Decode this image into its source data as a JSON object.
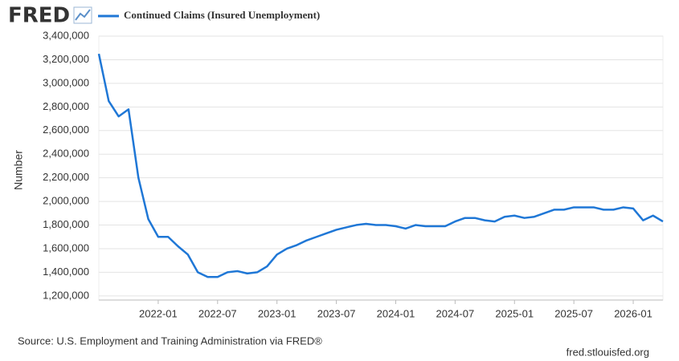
{
  "chart_data": {
    "type": "line",
    "logo": "FRED",
    "ylabel": "Number",
    "source": "Source: U.S. Employment and Training Administration via FRED®",
    "credit": "fred.stlouisfed.org",
    "grid": true,
    "xlim": [
      "2021-07",
      "2026-04"
    ],
    "xticks": [
      "2022-01",
      "2022-07",
      "2023-01",
      "2023-07",
      "2024-01",
      "2024-07",
      "2025-01",
      "2025-07",
      "2026-01"
    ],
    "ylim": [
      1165000,
      3400000
    ],
    "yticks": [
      {
        "value": 1200000,
        "label": "1,200,000"
      },
      {
        "value": 1400000,
        "label": "1,400,000"
      },
      {
        "value": 1600000,
        "label": "1,600,000"
      },
      {
        "value": 1800000,
        "label": "1,800,000"
      },
      {
        "value": 2000000,
        "label": "2,000,000"
      },
      {
        "value": 2200000,
        "label": "2,200,000"
      },
      {
        "value": 2400000,
        "label": "2,400,000"
      },
      {
        "value": 2600000,
        "label": "2,600,000"
      },
      {
        "value": 2800000,
        "label": "2,800,000"
      },
      {
        "value": 3000000,
        "label": "3,000,000"
      },
      {
        "value": 3200000,
        "label": "3,200,000"
      },
      {
        "value": 3400000,
        "label": "3,400,000"
      }
    ],
    "x": [
      "2021-07",
      "2021-08",
      "2021-09",
      "2021-10",
      "2021-11",
      "2021-12",
      "2022-01",
      "2022-02",
      "2022-03",
      "2022-04",
      "2022-05",
      "2022-06",
      "2022-07",
      "2022-08",
      "2022-09",
      "2022-10",
      "2022-11",
      "2022-12",
      "2023-01",
      "2023-02",
      "2023-03",
      "2023-04",
      "2023-05",
      "2023-06",
      "2023-07",
      "2023-08",
      "2023-09",
      "2023-10",
      "2023-11",
      "2023-12",
      "2024-01",
      "2024-02",
      "2024-03",
      "2024-04",
      "2024-05",
      "2024-06",
      "2024-07",
      "2024-08",
      "2024-09",
      "2024-10",
      "2024-11",
      "2024-12",
      "2025-01",
      "2025-02",
      "2025-03",
      "2025-04",
      "2025-05",
      "2025-06",
      "2025-07",
      "2025-08",
      "2025-09",
      "2025-10",
      "2025-11",
      "2025-12",
      "2026-01",
      "2026-02",
      "2026-03",
      "2026-04"
    ],
    "series": [
      {
        "name": "Continued Claims (Insured Unemployment)",
        "color": "#1f77d6",
        "values": [
          3250000,
          2850000,
          2720000,
          2780000,
          2200000,
          1850000,
          1700000,
          1700000,
          1620000,
          1550000,
          1400000,
          1360000,
          1360000,
          1400000,
          1410000,
          1390000,
          1400000,
          1450000,
          1550000,
          1600000,
          1630000,
          1670000,
          1700000,
          1730000,
          1760000,
          1780000,
          1800000,
          1810000,
          1800000,
          1800000,
          1790000,
          1770000,
          1800000,
          1790000,
          1790000,
          1790000,
          1830000,
          1860000,
          1860000,
          1840000,
          1830000,
          1870000,
          1880000,
          1860000,
          1870000,
          1900000,
          1930000,
          1930000,
          1950000,
          1950000,
          1950000,
          1930000,
          1930000,
          1950000,
          1940000,
          1840000,
          1880000,
          1830000
        ]
      }
    ]
  }
}
